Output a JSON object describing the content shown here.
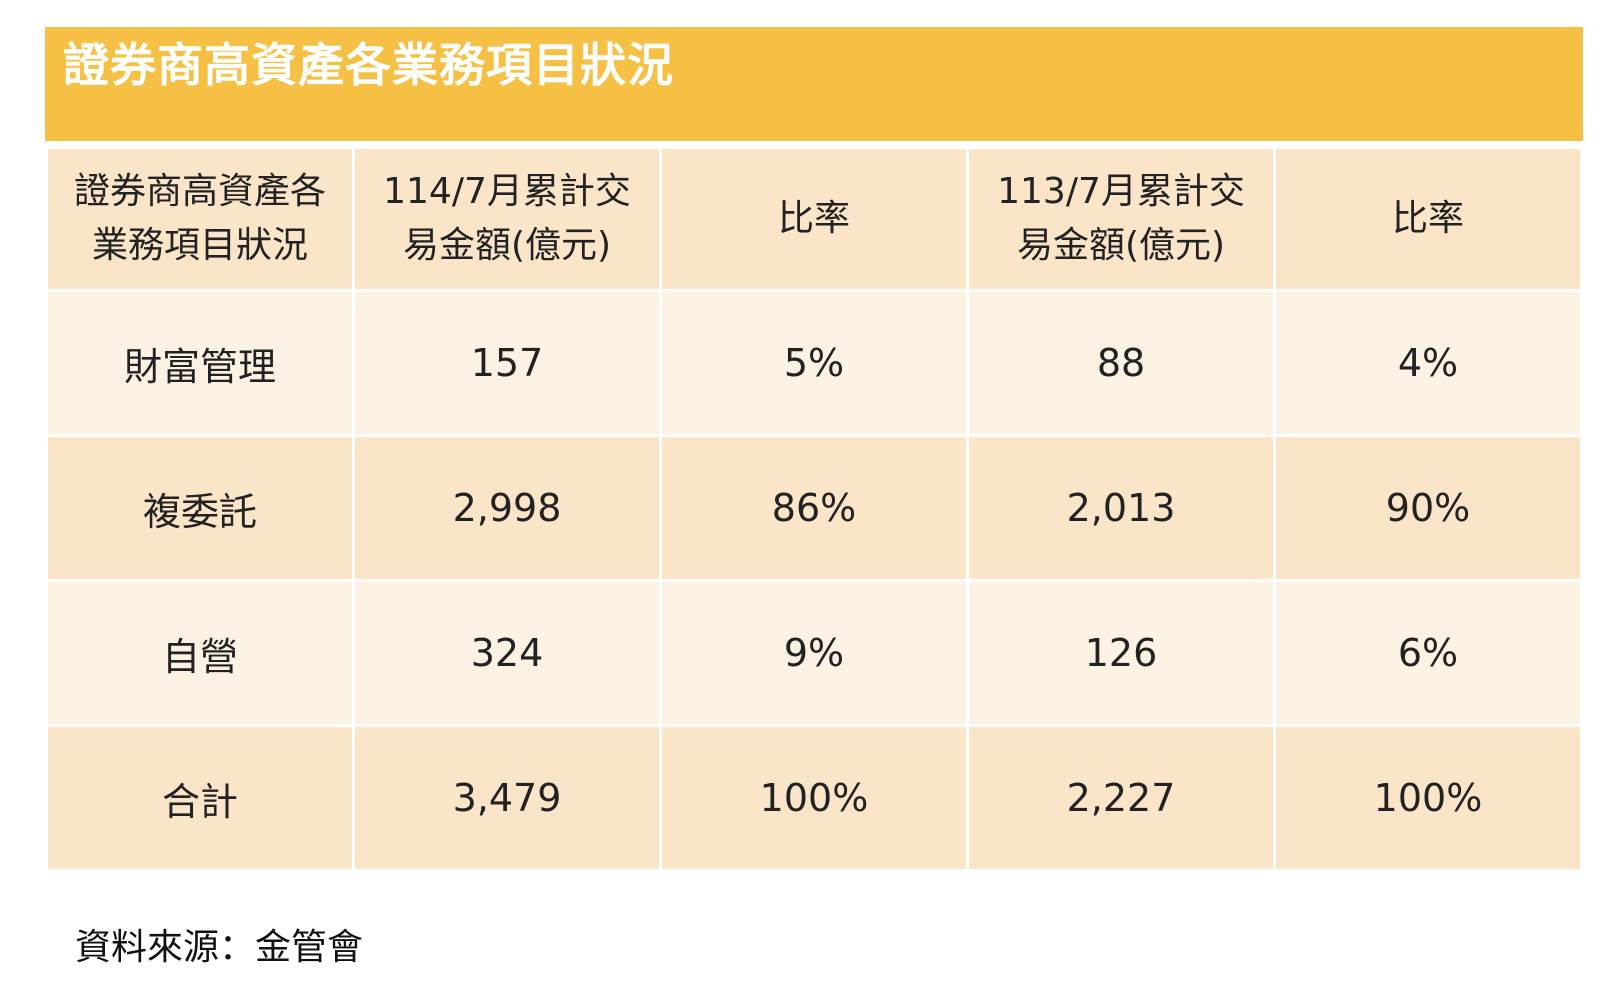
{
  "title": "證券商高資產各業務項目狀況",
  "colors": {
    "banner": "#f5c044",
    "row_shade_a": "#fbe5c9",
    "row_shade_b": "#fcf2e4",
    "title_text": "#ffffff"
  },
  "chart_data": {
    "type": "table",
    "title": "證券商高資產各業務項目狀況",
    "columns": [
      "證券商高資產各業務項目狀況",
      "114/7月累計交易金額(億元)",
      "比率",
      "113/7月累計交易金額(億元)",
      "比率"
    ],
    "rows": [
      [
        "財富管理",
        "157",
        "5%",
        "88",
        "4%"
      ],
      [
        "複委託",
        "2,998",
        "86%",
        "2,013",
        "90%"
      ],
      [
        "自營",
        "324",
        "9%",
        "126",
        "6%"
      ],
      [
        "合計",
        "3,479",
        "100%",
        "2,227",
        "100%"
      ]
    ]
  },
  "source": "資料來源：金管會"
}
